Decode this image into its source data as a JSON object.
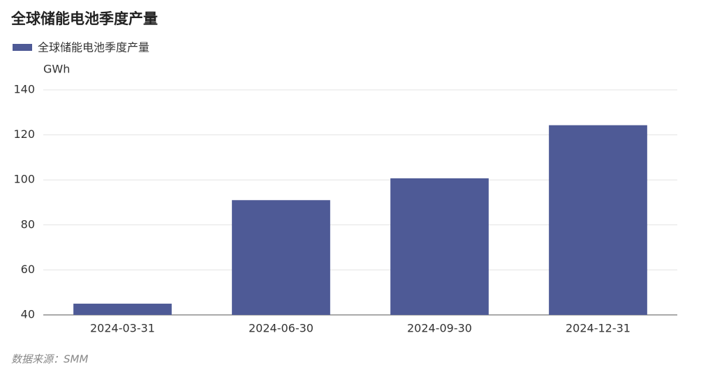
{
  "chart_data": {
    "type": "bar",
    "title": "全球储能电池季度产量",
    "y_axis_label": "GWh",
    "categories": [
      "2024-03-31",
      "2024-06-30",
      "2024-09-30",
      "2024-12-31"
    ],
    "series": [
      {
        "name": "全球储能电池季度产量",
        "color": "#4e5a96",
        "values": [
          45,
          91,
          100.7,
          124.3
        ]
      }
    ],
    "ylim": [
      40,
      140
    ],
    "yticks": [
      40,
      60,
      80,
      100,
      120,
      140
    ],
    "grid": true,
    "legend": "top-left",
    "source": "数据来源：SMM"
  }
}
